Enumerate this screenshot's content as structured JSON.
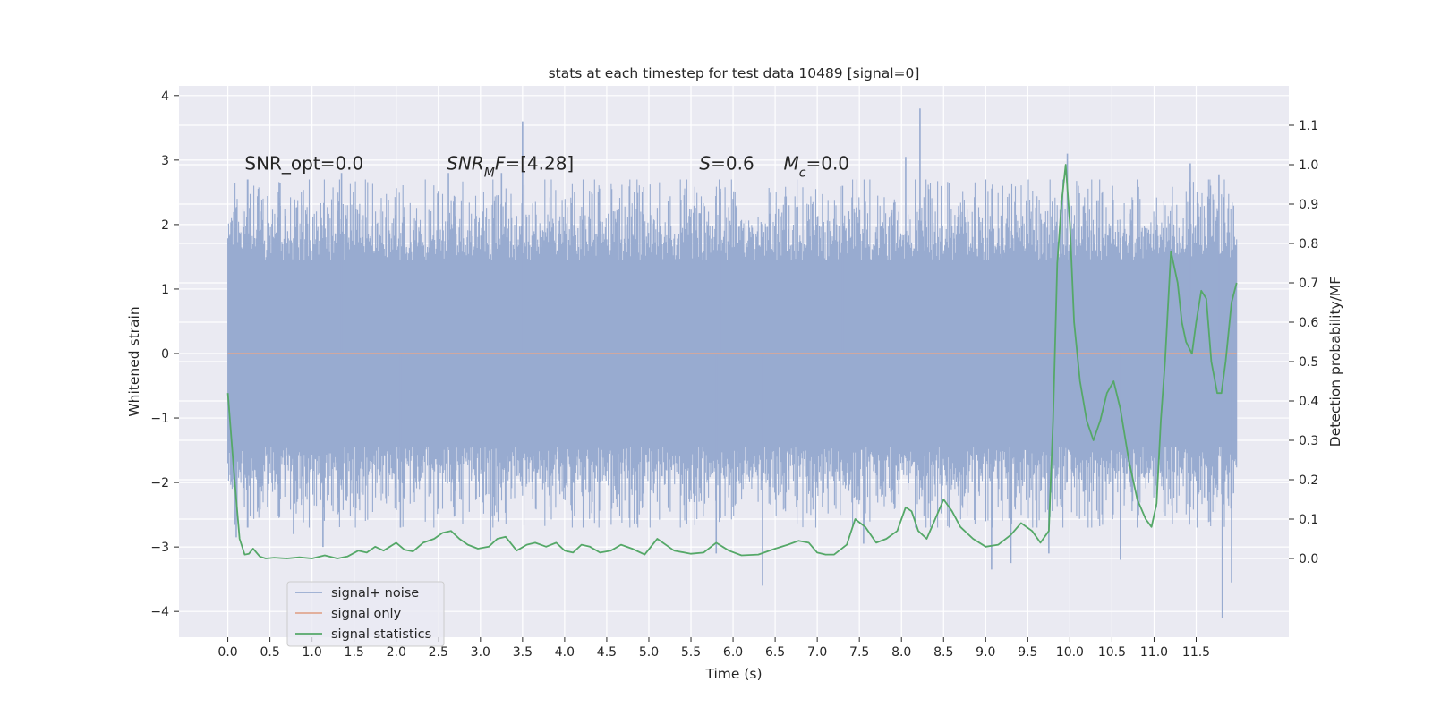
{
  "chart_data": {
    "type": "line",
    "title": "stats at each timestep for test data 10489 [signal=0]",
    "xlabel": "Time (s)",
    "ylabel": "Whitened strain",
    "ylabel_right": "Detection probability/MF",
    "xlim": [
      -0.58,
      12.6
    ],
    "ylim": [
      -4.4,
      4.15
    ],
    "ylim_right": [
      -0.2,
      1.2
    ],
    "x_ticks": [
      0.0,
      0.5,
      1.0,
      1.5,
      2.0,
      2.5,
      3.0,
      3.5,
      4.0,
      4.5,
      5.0,
      5.5,
      6.0,
      6.5,
      7.0,
      7.5,
      8.0,
      8.5,
      9.0,
      9.5,
      10.0,
      10.5,
      11.0,
      11.5
    ],
    "x_tick_labels": [
      "0.0",
      "0.5",
      "1.0",
      "1.5",
      "2.0",
      "2.5",
      "3.0",
      "3.5",
      "4.0",
      "4.5",
      "5.0",
      "5.5",
      "6.0",
      "6.5",
      "7.0",
      "7.5",
      "8.0",
      "8.5",
      "9.0",
      "9.5",
      "10.0",
      "10.5",
      "11.0",
      "11.5"
    ],
    "y_ticks": [
      4,
      3,
      2,
      1,
      0,
      -1,
      -2,
      -3,
      -4
    ],
    "y_tick_labels": [
      "4",
      "3",
      "2",
      "1",
      "0",
      "−1",
      "−2",
      "−3",
      "−4"
    ],
    "y_right_ticks": [
      1.1,
      1.0,
      0.9,
      0.8,
      0.7,
      0.6,
      0.5,
      0.4,
      0.3,
      0.2,
      0.1,
      0.0
    ],
    "y_right_tick_labels": [
      "1.1",
      "1.0",
      "0.9",
      "0.8",
      "0.7",
      "0.6",
      "0.5",
      "0.4",
      "0.3",
      "0.2",
      "0.1",
      "0.0"
    ],
    "annotations": [
      {
        "id": "snr-opt",
        "x": 0.2,
        "y": 2.85,
        "parts": [
          {
            "text": "SNR_opt=0.0",
            "italic": false
          }
        ]
      },
      {
        "id": "snr-mf",
        "x": 2.6,
        "y": 2.85,
        "parts": [
          {
            "text": "SNR",
            "italic": true
          },
          {
            "text": "M",
            "italic": true,
            "sub": true
          },
          {
            "text": "F",
            "italic": true
          },
          {
            "text": "=[4.28]",
            "italic": false
          }
        ]
      },
      {
        "id": "s-val",
        "x": 5.6,
        "y": 2.85,
        "parts": [
          {
            "text": "S",
            "italic": true
          },
          {
            "text": "=0.6",
            "italic": false
          }
        ]
      },
      {
        "id": "mc-val",
        "x": 6.6,
        "y": 2.85,
        "parts": [
          {
            "text": "M",
            "italic": true
          },
          {
            "text": "c",
            "italic": true,
            "sub": true
          },
          {
            "text": "=0.0",
            "italic": false
          }
        ]
      }
    ],
    "legend": {
      "placement": "lower-left",
      "entries": [
        {
          "label": "signal+ noise",
          "color": "#98abd0"
        },
        {
          "label": "signal only",
          "color": "#e0a891"
        },
        {
          "label": "signal statistics",
          "color": "#55a868"
        }
      ]
    },
    "series": [
      {
        "name": "signal+ noise",
        "axis": "left",
        "color": "#98abd0",
        "x_range": [
          0.0,
          11.98
        ],
        "core_band": [
          -1.45,
          1.45
        ],
        "peaks_positive": [
          {
            "x": 3.5,
            "y": 3.6
          },
          {
            "x": 8.22,
            "y": 3.8
          },
          {
            "x": 9.97,
            "y": 3.1
          },
          {
            "x": 8.05,
            "y": 3.05
          },
          {
            "x": 2.62,
            "y": 2.8
          },
          {
            "x": 3.25,
            "y": 2.8
          },
          {
            "x": 11.43,
            "y": 2.95
          },
          {
            "x": 11.77,
            "y": 2.78
          },
          {
            "x": 1.35,
            "y": 2.8
          },
          {
            "x": 7.3,
            "y": 2.6
          },
          {
            "x": 9.2,
            "y": 2.6
          },
          {
            "x": 10.1,
            "y": 2.6
          },
          {
            "x": 0.62,
            "y": 2.65
          },
          {
            "x": 5.85,
            "y": 2.5
          },
          {
            "x": 4.4,
            "y": 2.5
          }
        ],
        "peaks_negative": [
          {
            "x": 11.81,
            "y": -4.1
          },
          {
            "x": 11.92,
            "y": -3.55
          },
          {
            "x": 6.35,
            "y": -3.6
          },
          {
            "x": 9.07,
            "y": -3.35
          },
          {
            "x": 10.6,
            "y": -3.2
          },
          {
            "x": 9.75,
            "y": -3.1
          },
          {
            "x": 1.13,
            "y": -3.0
          },
          {
            "x": 9.3,
            "y": -3.25
          },
          {
            "x": 5.8,
            "y": -3.1
          },
          {
            "x": 3.12,
            "y": -2.9
          },
          {
            "x": 0.78,
            "y": -2.8
          },
          {
            "x": 0.1,
            "y": -2.85
          },
          {
            "x": 7.55,
            "y": -2.95
          },
          {
            "x": 2.05,
            "y": -2.7
          }
        ]
      },
      {
        "name": "signal only",
        "axis": "left",
        "color": "#e0a891",
        "x": [
          0.0,
          11.98
        ],
        "y": [
          0.0,
          0.0
        ]
      },
      {
        "name": "signal statistics",
        "axis": "right",
        "color": "#55a868",
        "x": [
          0.0,
          0.08,
          0.14,
          0.2,
          0.25,
          0.3,
          0.38,
          0.45,
          0.55,
          0.7,
          0.85,
          1.0,
          1.15,
          1.3,
          1.42,
          1.55,
          1.65,
          1.75,
          1.85,
          2.0,
          2.1,
          2.2,
          2.32,
          2.45,
          2.55,
          2.65,
          2.75,
          2.85,
          2.97,
          3.1,
          3.2,
          3.3,
          3.43,
          3.55,
          3.65,
          3.78,
          3.9,
          4.0,
          4.1,
          4.2,
          4.3,
          4.42,
          4.55,
          4.67,
          4.8,
          4.95,
          5.1,
          5.3,
          5.5,
          5.65,
          5.8,
          5.95,
          6.1,
          6.3,
          6.5,
          6.65,
          6.78,
          6.9,
          7.0,
          7.1,
          7.2,
          7.35,
          7.45,
          7.57,
          7.7,
          7.82,
          7.95,
          8.05,
          8.12,
          8.2,
          8.3,
          8.4,
          8.5,
          8.6,
          8.7,
          8.85,
          9.0,
          9.15,
          9.3,
          9.42,
          9.55,
          9.65,
          9.75,
          9.8,
          9.85,
          9.9,
          9.95,
          10.0,
          10.05,
          10.12,
          10.2,
          10.28,
          10.36,
          10.44,
          10.52,
          10.6,
          10.7,
          10.8,
          10.9,
          10.97,
          11.03,
          11.08,
          11.13,
          11.2,
          11.28,
          11.33,
          11.38,
          11.45,
          11.5,
          11.56,
          11.62,
          11.68,
          11.75,
          11.8,
          11.85,
          11.92,
          11.98
        ],
        "y": [
          0.42,
          0.2,
          0.05,
          0.01,
          0.012,
          0.025,
          0.005,
          0.0,
          0.002,
          0.0,
          0.003,
          0.0,
          0.008,
          0.0,
          0.005,
          0.02,
          0.015,
          0.03,
          0.02,
          0.04,
          0.022,
          0.018,
          0.04,
          0.05,
          0.065,
          0.07,
          0.05,
          0.035,
          0.025,
          0.03,
          0.05,
          0.055,
          0.02,
          0.035,
          0.04,
          0.03,
          0.04,
          0.02,
          0.015,
          0.035,
          0.03,
          0.015,
          0.02,
          0.035,
          0.025,
          0.01,
          0.05,
          0.02,
          0.012,
          0.015,
          0.04,
          0.02,
          0.008,
          0.01,
          0.025,
          0.035,
          0.045,
          0.04,
          0.015,
          0.01,
          0.01,
          0.035,
          0.1,
          0.08,
          0.04,
          0.05,
          0.07,
          0.13,
          0.12,
          0.07,
          0.05,
          0.1,
          0.15,
          0.12,
          0.08,
          0.05,
          0.03,
          0.035,
          0.06,
          0.09,
          0.07,
          0.04,
          0.07,
          0.35,
          0.75,
          0.9,
          1.0,
          0.85,
          0.6,
          0.45,
          0.35,
          0.3,
          0.35,
          0.42,
          0.45,
          0.38,
          0.25,
          0.15,
          0.1,
          0.08,
          0.14,
          0.35,
          0.5,
          0.78,
          0.7,
          0.6,
          0.55,
          0.52,
          0.6,
          0.68,
          0.66,
          0.5,
          0.42,
          0.42,
          0.5,
          0.65,
          0.7
        ]
      }
    ]
  }
}
